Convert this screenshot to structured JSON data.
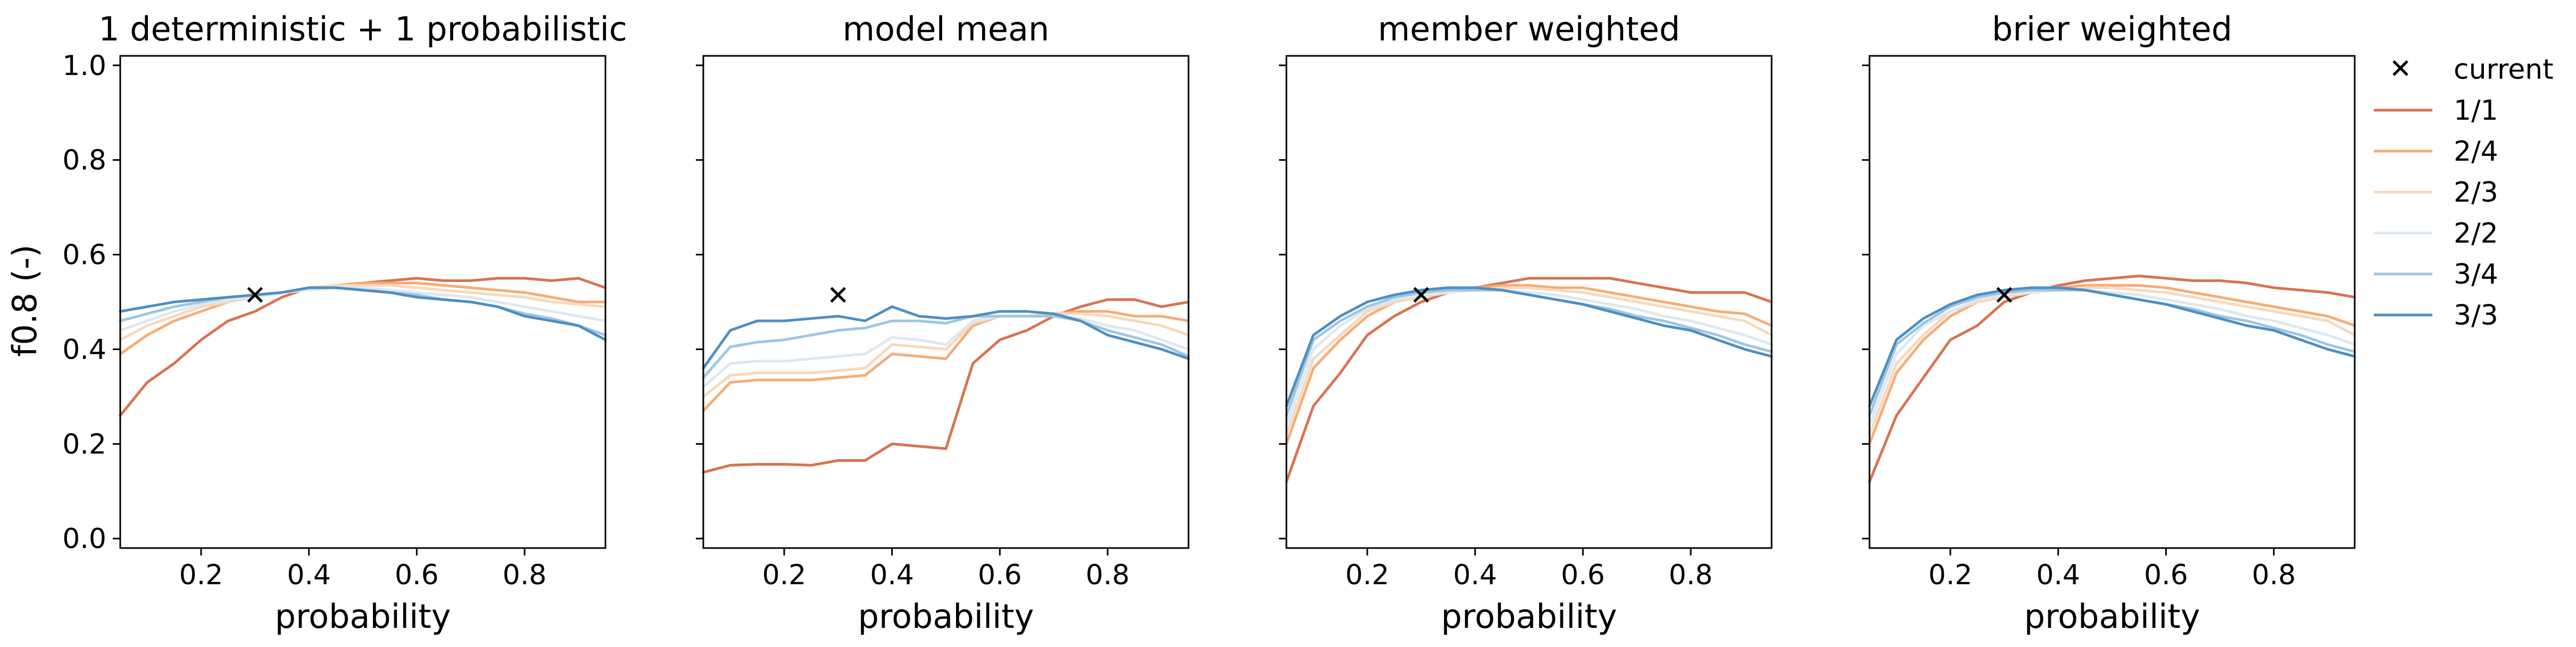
{
  "figure": {
    "ylabel": "f0.8 (-)",
    "xlabel": "probability"
  },
  "legend": {
    "marker_label": "current",
    "placement": "outside-right"
  },
  "colors": {
    "1/1": "#d8734f",
    "2/4": "#f6ac75",
    "2/3": "#f7d9bd",
    "2/2": "#dde8f1",
    "3/4": "#9fc6e0",
    "3/3": "#4f8fc2"
  },
  "chart_data": [
    {
      "type": "line",
      "title": "1 deterministic + 1 probabilistic",
      "xlabel": "probability",
      "ylabel": "f0.8 (-)",
      "xlim": [
        0.05,
        0.95
      ],
      "ylim": [
        -0.02,
        1.02
      ],
      "xticks": [
        0.2,
        0.4,
        0.6,
        0.8
      ],
      "yticks": [
        0.0,
        0.2,
        0.4,
        0.6,
        0.8,
        1.0
      ],
      "x": [
        0.05,
        0.1,
        0.15,
        0.2,
        0.25,
        0.3,
        0.35,
        0.4,
        0.45,
        0.5,
        0.55,
        0.6,
        0.65,
        0.7,
        0.75,
        0.8,
        0.85,
        0.9,
        0.95
      ],
      "series": [
        {
          "name": "1/1",
          "values": [
            0.26,
            0.33,
            0.37,
            0.42,
            0.46,
            0.48,
            0.51,
            0.53,
            0.535,
            0.54,
            0.545,
            0.55,
            0.545,
            0.545,
            0.55,
            0.55,
            0.545,
            0.55,
            0.53
          ]
        },
        {
          "name": "2/4",
          "values": [
            0.39,
            0.43,
            0.46,
            0.48,
            0.5,
            0.51,
            0.52,
            0.53,
            0.535,
            0.54,
            0.54,
            0.54,
            0.535,
            0.53,
            0.525,
            0.52,
            0.51,
            0.5,
            0.5
          ]
        },
        {
          "name": "2/3",
          "values": [
            0.42,
            0.45,
            0.47,
            0.49,
            0.5,
            0.51,
            0.52,
            0.53,
            0.535,
            0.535,
            0.535,
            0.53,
            0.525,
            0.52,
            0.515,
            0.51,
            0.5,
            0.495,
            0.49
          ]
        },
        {
          "name": "2/2",
          "values": [
            0.44,
            0.46,
            0.48,
            0.495,
            0.505,
            0.51,
            0.52,
            0.525,
            0.53,
            0.53,
            0.525,
            0.52,
            0.515,
            0.51,
            0.5,
            0.49,
            0.48,
            0.47,
            0.46
          ]
        },
        {
          "name": "3/4",
          "values": [
            0.46,
            0.475,
            0.49,
            0.5,
            0.51,
            0.515,
            0.52,
            0.53,
            0.53,
            0.525,
            0.52,
            0.515,
            0.505,
            0.5,
            0.49,
            0.475,
            0.465,
            0.45,
            0.43
          ]
        },
        {
          "name": "3/3",
          "values": [
            0.48,
            0.49,
            0.5,
            0.505,
            0.51,
            0.515,
            0.52,
            0.53,
            0.53,
            0.525,
            0.52,
            0.51,
            0.505,
            0.5,
            0.49,
            0.47,
            0.46,
            0.45,
            0.42
          ]
        }
      ],
      "markers": [
        {
          "label": "current",
          "x": 0.3,
          "y": 0.515
        }
      ]
    },
    {
      "type": "line",
      "title": "model mean",
      "xlabel": "probability",
      "xlim": [
        0.05,
        0.95
      ],
      "ylim": [
        -0.02,
        1.02
      ],
      "xticks": [
        0.2,
        0.4,
        0.6,
        0.8
      ],
      "yticks": [
        0.0,
        0.2,
        0.4,
        0.6,
        0.8,
        1.0
      ],
      "x": [
        0.05,
        0.1,
        0.15,
        0.2,
        0.25,
        0.3,
        0.35,
        0.4,
        0.45,
        0.5,
        0.55,
        0.6,
        0.65,
        0.7,
        0.75,
        0.8,
        0.85,
        0.9,
        0.95
      ],
      "series": [
        {
          "name": "1/1",
          "values": [
            0.14,
            0.155,
            0.157,
            0.157,
            0.155,
            0.165,
            0.165,
            0.2,
            0.195,
            0.19,
            0.37,
            0.42,
            0.44,
            0.47,
            0.49,
            0.505,
            0.505,
            0.49,
            0.5
          ]
        },
        {
          "name": "2/4",
          "values": [
            0.27,
            0.33,
            0.335,
            0.335,
            0.335,
            0.34,
            0.345,
            0.39,
            0.385,
            0.38,
            0.45,
            0.47,
            0.47,
            0.475,
            0.48,
            0.48,
            0.47,
            0.47,
            0.46
          ]
        },
        {
          "name": "2/3",
          "values": [
            0.3,
            0.345,
            0.35,
            0.35,
            0.35,
            0.355,
            0.36,
            0.41,
            0.405,
            0.4,
            0.455,
            0.47,
            0.47,
            0.475,
            0.475,
            0.47,
            0.46,
            0.45,
            0.43
          ]
        },
        {
          "name": "2/2",
          "values": [
            0.32,
            0.37,
            0.375,
            0.375,
            0.38,
            0.385,
            0.39,
            0.425,
            0.42,
            0.41,
            0.46,
            0.47,
            0.47,
            0.47,
            0.465,
            0.45,
            0.44,
            0.42,
            0.4
          ]
        },
        {
          "name": "3/4",
          "values": [
            0.34,
            0.405,
            0.415,
            0.42,
            0.43,
            0.44,
            0.445,
            0.46,
            0.46,
            0.455,
            0.47,
            0.47,
            0.47,
            0.47,
            0.46,
            0.44,
            0.425,
            0.41,
            0.385
          ]
        },
        {
          "name": "3/3",
          "values": [
            0.36,
            0.44,
            0.46,
            0.46,
            0.465,
            0.47,
            0.46,
            0.49,
            0.47,
            0.465,
            0.47,
            0.48,
            0.48,
            0.475,
            0.46,
            0.43,
            0.415,
            0.4,
            0.38
          ]
        }
      ],
      "markers": [
        {
          "label": "current",
          "x": 0.3,
          "y": 0.515
        }
      ]
    },
    {
      "type": "line",
      "title": "member weighted",
      "xlabel": "probability",
      "xlim": [
        0.05,
        0.95
      ],
      "ylim": [
        -0.02,
        1.02
      ],
      "xticks": [
        0.2,
        0.4,
        0.6,
        0.8
      ],
      "yticks": [
        0.0,
        0.2,
        0.4,
        0.6,
        0.8,
        1.0
      ],
      "x": [
        0.05,
        0.1,
        0.15,
        0.2,
        0.25,
        0.3,
        0.35,
        0.4,
        0.45,
        0.5,
        0.55,
        0.6,
        0.65,
        0.7,
        0.75,
        0.8,
        0.85,
        0.9,
        0.95
      ],
      "series": [
        {
          "name": "1/1",
          "values": [
            0.12,
            0.28,
            0.35,
            0.43,
            0.47,
            0.5,
            0.52,
            0.53,
            0.54,
            0.55,
            0.55,
            0.55,
            0.55,
            0.54,
            0.53,
            0.52,
            0.52,
            0.52,
            0.5
          ]
        },
        {
          "name": "2/4",
          "values": [
            0.2,
            0.36,
            0.42,
            0.47,
            0.5,
            0.51,
            0.52,
            0.53,
            0.535,
            0.535,
            0.53,
            0.53,
            0.52,
            0.51,
            0.5,
            0.49,
            0.48,
            0.475,
            0.45
          ]
        },
        {
          "name": "2/3",
          "values": [
            0.22,
            0.38,
            0.43,
            0.48,
            0.5,
            0.51,
            0.52,
            0.525,
            0.53,
            0.53,
            0.525,
            0.52,
            0.51,
            0.5,
            0.49,
            0.48,
            0.47,
            0.46,
            0.43
          ]
        },
        {
          "name": "2/2",
          "values": [
            0.24,
            0.4,
            0.45,
            0.485,
            0.505,
            0.515,
            0.52,
            0.525,
            0.525,
            0.52,
            0.515,
            0.505,
            0.495,
            0.485,
            0.47,
            0.46,
            0.445,
            0.43,
            0.41
          ]
        },
        {
          "name": "3/4",
          "values": [
            0.26,
            0.42,
            0.46,
            0.49,
            0.51,
            0.52,
            0.525,
            0.525,
            0.525,
            0.515,
            0.505,
            0.495,
            0.485,
            0.47,
            0.46,
            0.445,
            0.43,
            0.41,
            0.395
          ]
        },
        {
          "name": "3/3",
          "values": [
            0.28,
            0.43,
            0.47,
            0.5,
            0.515,
            0.525,
            0.53,
            0.53,
            0.525,
            0.515,
            0.505,
            0.495,
            0.48,
            0.465,
            0.45,
            0.44,
            0.42,
            0.4,
            0.385
          ]
        }
      ],
      "markers": [
        {
          "label": "current",
          "x": 0.3,
          "y": 0.515
        }
      ]
    },
    {
      "type": "line",
      "title": "brier weighted",
      "xlabel": "probability",
      "xlim": [
        0.05,
        0.95
      ],
      "ylim": [
        -0.02,
        1.02
      ],
      "xticks": [
        0.2,
        0.4,
        0.6,
        0.8
      ],
      "yticks": [
        0.0,
        0.2,
        0.4,
        0.6,
        0.8,
        1.0
      ],
      "x": [
        0.05,
        0.1,
        0.15,
        0.2,
        0.25,
        0.3,
        0.35,
        0.4,
        0.45,
        0.5,
        0.55,
        0.6,
        0.65,
        0.7,
        0.75,
        0.8,
        0.85,
        0.9,
        0.95
      ],
      "series": [
        {
          "name": "1/1",
          "values": [
            0.12,
            0.26,
            0.34,
            0.42,
            0.45,
            0.5,
            0.52,
            0.535,
            0.545,
            0.55,
            0.555,
            0.55,
            0.545,
            0.545,
            0.54,
            0.53,
            0.525,
            0.52,
            0.51
          ]
        },
        {
          "name": "2/4",
          "values": [
            0.2,
            0.35,
            0.42,
            0.47,
            0.5,
            0.51,
            0.52,
            0.53,
            0.535,
            0.535,
            0.535,
            0.53,
            0.52,
            0.51,
            0.5,
            0.49,
            0.48,
            0.47,
            0.45
          ]
        },
        {
          "name": "2/3",
          "values": [
            0.22,
            0.37,
            0.43,
            0.48,
            0.5,
            0.51,
            0.52,
            0.525,
            0.53,
            0.53,
            0.525,
            0.52,
            0.51,
            0.5,
            0.49,
            0.48,
            0.47,
            0.46,
            0.43
          ]
        },
        {
          "name": "2/2",
          "values": [
            0.24,
            0.39,
            0.45,
            0.48,
            0.505,
            0.515,
            0.52,
            0.525,
            0.525,
            0.52,
            0.515,
            0.505,
            0.495,
            0.485,
            0.47,
            0.46,
            0.445,
            0.43,
            0.41
          ]
        },
        {
          "name": "3/4",
          "values": [
            0.26,
            0.41,
            0.455,
            0.49,
            0.51,
            0.52,
            0.525,
            0.525,
            0.525,
            0.515,
            0.505,
            0.495,
            0.485,
            0.47,
            0.46,
            0.445,
            0.43,
            0.41,
            0.395
          ]
        },
        {
          "name": "3/3",
          "values": [
            0.28,
            0.42,
            0.465,
            0.495,
            0.515,
            0.525,
            0.53,
            0.53,
            0.525,
            0.515,
            0.505,
            0.495,
            0.48,
            0.465,
            0.45,
            0.44,
            0.42,
            0.4,
            0.385
          ]
        }
      ],
      "markers": [
        {
          "label": "current",
          "x": 0.3,
          "y": 0.515
        }
      ]
    }
  ]
}
